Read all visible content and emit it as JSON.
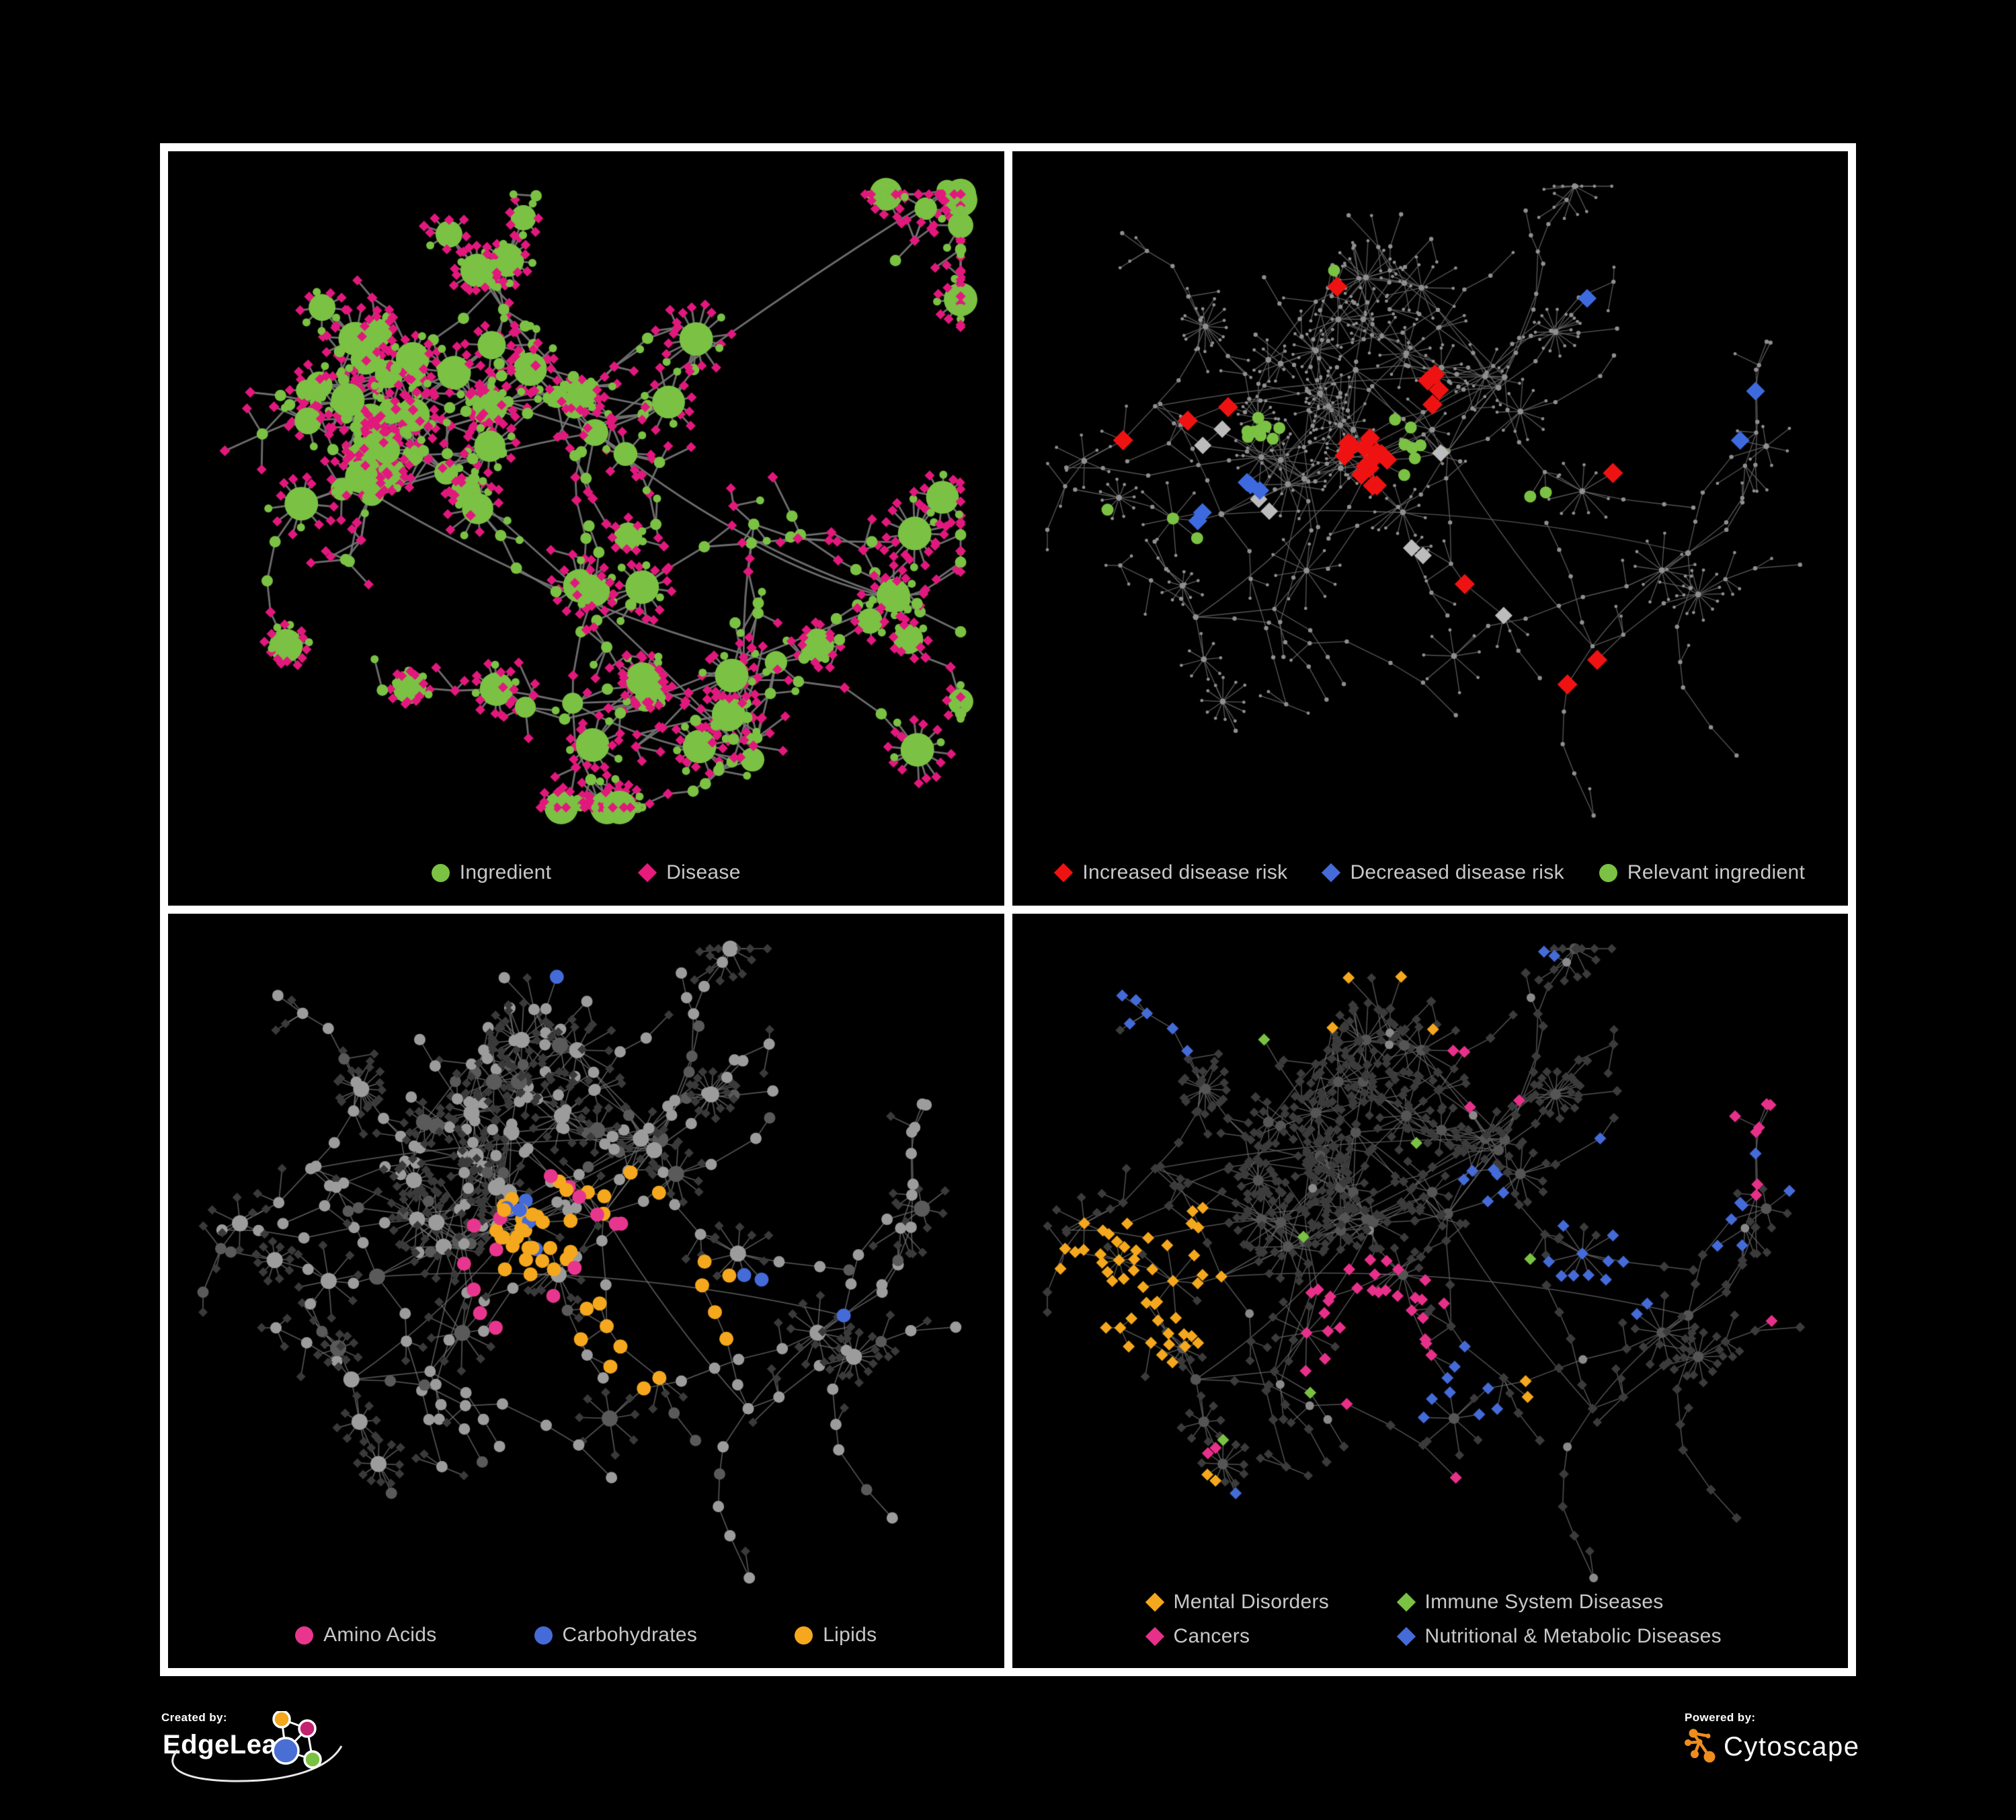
{
  "colors": {
    "background": "#000000",
    "frame": "#ffffff",
    "legend_text": "#c8c8c8",
    "green": "#7bc143",
    "magenta": "#e2187d",
    "red": "#ee1312",
    "blue": "#446bd8",
    "orange": "#f5a81d",
    "pink": "#e8368e",
    "gray_highlight": "#bcbcbc",
    "cytoscape_orange": "#ef8e1d"
  },
  "topologies": {
    "alt": {
      "seed": 911,
      "clusters": 15,
      "coreClusters": 6,
      "coreBox": [
        0.24,
        0.3,
        0.3,
        0.26
      ],
      "branchMin": 3,
      "branchVar": 2,
      "lenMin": 2,
      "lenVar": 4,
      "stepMin": 30,
      "stepVar": 40,
      "burstProb": 0.2,
      "burstMin": 5,
      "burstVar": 12,
      "burstRadMin": 24,
      "burstRadVar": 22,
      "leafProb": 0.3,
      "extraTries": 110,
      "coreRadius": 280,
      "linkDist": 120,
      "margin": 64
    },
    "main": {
      "seed": 20240,
      "clusters": 14,
      "coreClusters": 5,
      "coreBox": [
        0.3,
        0.26,
        0.3,
        0.24
      ],
      "branchMin": 3,
      "branchVar": 2,
      "lenMin": 3,
      "lenVar": 4,
      "stepMin": 34,
      "stepVar": 44,
      "burstProb": 0.14,
      "burstMin": 6,
      "burstVar": 9,
      "burstRadMin": 26,
      "burstRadVar": 24,
      "leafProb": 0.28,
      "extraTries": 80,
      "coreRadius": 300,
      "linkDist": 130,
      "margin": 52
    }
  },
  "panels": [
    {
      "key": "ingredient-disease",
      "legend": [
        {
          "label": "Ingredient",
          "shape": "circle",
          "color": "#7bc143"
        },
        {
          "label": "Disease",
          "shape": "diamond",
          "color": "#e81b7d"
        }
      ],
      "network": {
        "topology": "alt",
        "seed": 7,
        "edge_color": "#757575",
        "edge_width": 2.9,
        "edge_alpha": 0.92,
        "base": {
          "style": "mixed",
          "green": "#7bc143",
          "magenta": "#e2187d"
        },
        "overlays": []
      }
    },
    {
      "key": "disease-risk",
      "legend": [
        {
          "label": "Increased disease risk",
          "shape": "diamond",
          "color": "#ee1312"
        },
        {
          "label": "Decreased disease risk",
          "shape": "diamond",
          "color": "#446bd8"
        },
        {
          "label": "Relevant ingredient",
          "shape": "circle",
          "color": "#7bc143"
        }
      ],
      "network": {
        "topology": "main",
        "seed": 101,
        "edge_color": "#636363",
        "edge_width": 1.4,
        "edge_alpha": 0.85,
        "base": {
          "style": "dots",
          "color": "#8f8f8f"
        },
        "overlays": [
          {
            "shape": "diamond",
            "color": "#ee1312",
            "size": 15,
            "groups": [
              [
                0.43,
                0.44,
                16,
                0.1
              ],
              [
                0.5,
                0.34,
                4,
                0.06
              ],
              [
                0.23,
                0.36,
                2,
                0.05
              ],
              [
                0.16,
                0.42,
                1,
                0.02
              ],
              [
                0.7,
                0.4,
                1,
                0.02
              ],
              [
                0.39,
                0.2,
                1,
                0.02
              ],
              [
                0.56,
                0.64,
                1,
                0.02
              ],
              [
                0.72,
                0.78,
                2,
                0.05
              ]
            ]
          },
          {
            "shape": "diamond",
            "color": "#bcbcbc",
            "size": 13,
            "groups": [
              [
                0.24,
                0.39,
                2,
                0.06
              ],
              [
                0.3,
                0.51,
                2,
                0.06
              ],
              [
                0.45,
                0.6,
                2,
                0.06
              ],
              [
                0.5,
                0.43,
                1,
                0.03
              ],
              [
                0.57,
                0.6,
                1,
                0.03
              ]
            ]
          },
          {
            "shape": "diamond",
            "color": "#3e6ae0",
            "size": 14,
            "groups": [
              [
                0.26,
                0.52,
                5,
                0.06
              ],
              [
                0.82,
                0.36,
                2,
                0.03
              ],
              [
                0.7,
                0.2,
                1,
                0.02
              ]
            ]
          },
          {
            "shape": "circle",
            "color": "#7bc143",
            "size": 9,
            "groups": [
              [
                0.3,
                0.4,
                9,
                0.13
              ],
              [
                0.47,
                0.43,
                8,
                0.1
              ],
              [
                0.2,
                0.55,
                2,
                0.07
              ],
              [
                0.38,
                0.17,
                1,
                0.03
              ],
              [
                0.09,
                0.53,
                1,
                0.03
              ],
              [
                0.6,
                0.5,
                2,
                0.06
              ]
            ]
          }
        ]
      }
    },
    {
      "key": "macronutrients",
      "legend": [
        {
          "label": "Amino Acids",
          "shape": "circle",
          "color": "#e8368e"
        },
        {
          "label": "Carbohydrates",
          "shape": "circle",
          "color": "#446bd8"
        },
        {
          "label": "Lipids",
          "shape": "circle",
          "color": "#f5a81d"
        }
      ],
      "network": {
        "topology": "main",
        "seed": 202,
        "edge_color": "#787878",
        "edge_width": 1.7,
        "edge_alpha": 0.7,
        "base": {
          "style": "gray-circles"
        },
        "overlays": [
          {
            "shape": "circle",
            "color": "#f5a81d",
            "size": 10.5,
            "groups": [
              [
                0.44,
                0.47,
                22,
                0.09
              ],
              [
                0.56,
                0.6,
                8,
                0.055
              ],
              [
                0.65,
                0.57,
                5,
                0.05
              ],
              [
                0.5,
                0.5,
                13,
                0.48
              ]
            ]
          },
          {
            "shape": "circle",
            "color": "#446bd8",
            "size": 10.5,
            "groups": [
              [
                0.43,
                0.44,
                6,
                0.055
              ],
              [
                0.05,
                0.27,
                1,
                0.02
              ],
              [
                0.68,
                0.58,
                2,
                0.05
              ],
              [
                0.82,
                0.56,
                1,
                0.02
              ],
              [
                0.47,
                0.1,
                1,
                0.03
              ]
            ]
          },
          {
            "shape": "circle",
            "color": "#e8368e",
            "size": 10.5,
            "groups": [
              [
                0.5,
                0.52,
                15,
                0.55
              ]
            ]
          }
        ]
      }
    },
    {
      "key": "disease-classes",
      "legend": [
        {
          "label": "Mental Disorders",
          "shape": "diamond",
          "color": "#f5a81d"
        },
        {
          "label": "Immune System Diseases",
          "shape": "diamond",
          "color": "#7bc143"
        },
        {
          "label": "Cancers",
          "shape": "diamond",
          "color": "#e8308a"
        },
        {
          "label": "Nutritional & Metabolic Diseases",
          "shape": "diamond",
          "color": "#446bd8"
        }
      ],
      "network": {
        "topology": "main",
        "seed": 303,
        "edge_color": "#666666",
        "edge_width": 1.5,
        "edge_alpha": 0.8,
        "base": {
          "style": "dark-diamonds"
        },
        "overlays": [
          {
            "shape": "diamond",
            "color": "#f5a81d",
            "size": 9,
            "groups": [
              [
                0.16,
                0.52,
                50,
                0.095
              ],
              [
                0.33,
                0.11,
                2,
                0.05
              ],
              [
                0.51,
                0.08,
                2,
                0.05
              ],
              [
                0.2,
                0.84,
                2,
                0.05
              ],
              [
                0.63,
                0.64,
                2,
                0.04
              ],
              [
                0.45,
                0.92,
                1,
                0.03
              ]
            ]
          },
          {
            "shape": "diamond",
            "color": "#e8308a",
            "size": 9,
            "groups": [
              [
                0.43,
                0.6,
                30,
                0.095
              ],
              [
                0.9,
                0.28,
                7,
                0.05
              ],
              [
                0.57,
                0.22,
                4,
                0.06
              ],
              [
                0.45,
                0.92,
                2,
                0.05
              ],
              [
                0.2,
                0.8,
                2,
                0.05
              ],
              [
                0.95,
                0.53,
                1,
                0.03
              ]
            ]
          },
          {
            "shape": "diamond",
            "color": "#446bd8",
            "size": 9,
            "groups": [
              [
                0.71,
                0.5,
                12,
                0.075
              ],
              [
                0.82,
                0.33,
                8,
                0.065
              ],
              [
                0.57,
                0.4,
                6,
                0.055
              ],
              [
                0.52,
                0.68,
                9,
                0.07
              ],
              [
                0.2,
                0.1,
                6,
                0.13
              ],
              [
                0.92,
                0.1,
                3,
                0.07
              ],
              [
                0.63,
                0.05,
                2,
                0.05
              ],
              [
                0.09,
                0.73,
                1,
                0.02
              ],
              [
                0.26,
                0.92,
                1,
                0.03
              ]
            ]
          },
          {
            "shape": "diamond",
            "color": "#7bc143",
            "size": 9,
            "groups": [
              [
                0.49,
                0.32,
                1,
                0.03
              ],
              [
                0.34,
                0.45,
                1,
                0.03
              ],
              [
                0.4,
                0.66,
                1,
                0.03
              ],
              [
                0.25,
                0.76,
                1,
                0.03
              ],
              [
                0.52,
                0.9,
                1,
                0.03
              ],
              [
                0.57,
                0.5,
                1,
                0.03
              ],
              [
                0.3,
                0.2,
                1,
                0.03
              ]
            ]
          }
        ]
      }
    }
  ],
  "footer": {
    "created_by": "Created by:",
    "created_brand": "EdgeLeap",
    "powered_by": "Powered by:",
    "powered_brand": "Cytoscape"
  }
}
